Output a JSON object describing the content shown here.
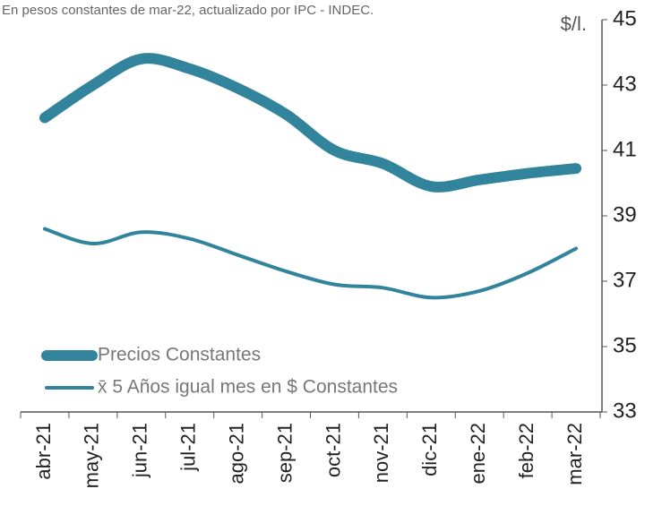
{
  "chart_data": {
    "type": "line",
    "subtitle": "En pesos constantes de mar-22, actualizado por IPC - INDEC.",
    "y_axis_label": "$/l.",
    "categories": [
      "abr-21",
      "may-21",
      "jun-21",
      "jul-21",
      "ago-21",
      "sep-21",
      "oct-21",
      "nov-21",
      "dic-21",
      "ene-22",
      "feb-22",
      "mar-22"
    ],
    "series": [
      {
        "name": "Precios Constantes",
        "color": "#31849b",
        "width": 12,
        "values": [
          42.0,
          43.0,
          43.8,
          43.5,
          42.9,
          42.1,
          41.0,
          40.6,
          39.9,
          40.1,
          40.3,
          40.45
        ]
      },
      {
        "name": "x̄ 5 Años igual mes en $ Constantes",
        "color": "#31849b",
        "width": 4,
        "values": [
          38.6,
          38.15,
          38.5,
          38.3,
          37.8,
          37.3,
          36.9,
          36.8,
          36.5,
          36.7,
          37.25,
          38.0
        ]
      }
    ],
    "ylim": [
      33,
      45
    ],
    "yticks": [
      33,
      35,
      37,
      39,
      41,
      43,
      45
    ],
    "y_axis_side": "right",
    "grid": false
  }
}
